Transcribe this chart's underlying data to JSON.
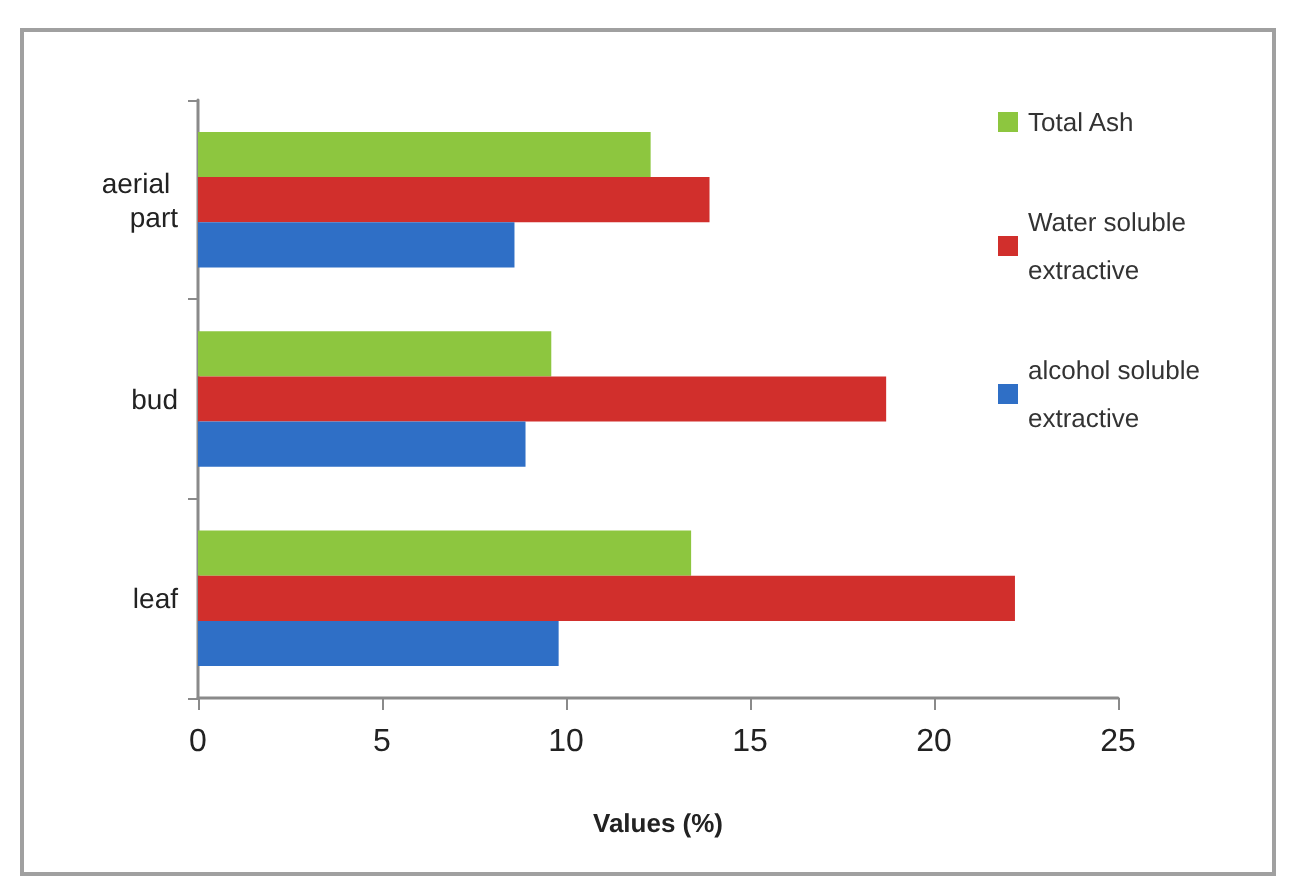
{
  "chart_data": {
    "type": "bar",
    "orientation": "horizontal",
    "xlabel": "Values (%)",
    "categories": [
      "aerial part",
      "bud",
      "leaf"
    ],
    "series": [
      {
        "name": "Total Ash",
        "color": "#8dc63f",
        "values": [
          12.3,
          9.6,
          13.4
        ]
      },
      {
        "name": "Water soluble extractive",
        "color": "#d12f2c",
        "values": [
          13.9,
          18.7,
          22.2
        ]
      },
      {
        "name": "alcohol soluble extractive",
        "color": "#2f6fc6",
        "values": [
          8.6,
          8.9,
          9.8
        ]
      }
    ],
    "xlim": [
      0,
      25
    ],
    "xticks": [
      0,
      5,
      10,
      15,
      20,
      25
    ],
    "grid": false,
    "legend": "top right"
  }
}
